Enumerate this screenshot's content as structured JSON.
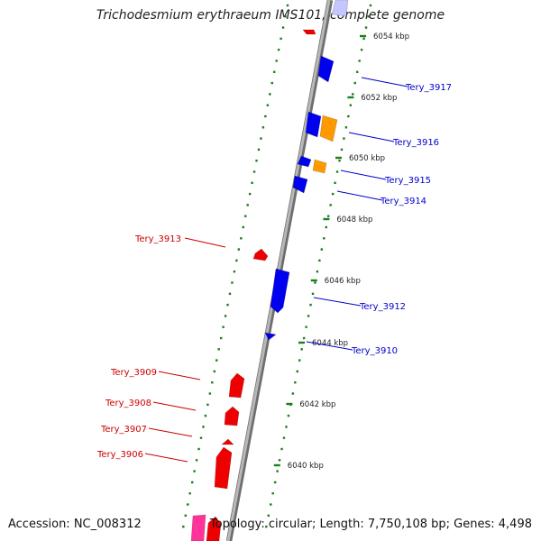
{
  "title": "Trichodesmium erythraeum IMS101, complete genome",
  "footer": {
    "accession": "Accession: NC_008312",
    "topology": "Topology: circular; Length: 7,750,108 bp; Genes: 4,498"
  },
  "colors": {
    "backbone": "#8c8c8c",
    "tick": "#1e7d1e",
    "forward_label": "#0000cc",
    "reverse_label": "#cc0000",
    "blue_gene": "#0000ee",
    "red_gene": "#ee0000",
    "orange_gene": "#ff9900",
    "pink_gene": "#ff3399"
  },
  "scale_labels": [
    "6054 kbp",
    "6052 kbp",
    "6050 kbp",
    "6048 kbp",
    "6046 kbp",
    "6044 kbp",
    "6042 kbp",
    "6040 kbp"
  ],
  "gene_labels": [
    {
      "text": "Tery_3917",
      "strand": "forward"
    },
    {
      "text": "Tery_3916",
      "strand": "forward"
    },
    {
      "text": "Tery_3915",
      "strand": "forward"
    },
    {
      "text": "Tery_3914",
      "strand": "forward"
    },
    {
      "text": "Tery_3913",
      "strand": "reverse"
    },
    {
      "text": "Tery_3912",
      "strand": "forward"
    },
    {
      "text": "Tery_3910",
      "strand": "forward"
    },
    {
      "text": "Tery_3909",
      "strand": "reverse"
    },
    {
      "text": "Tery_3908",
      "strand": "reverse"
    },
    {
      "text": "Tery_3907",
      "strand": "reverse"
    },
    {
      "text": "Tery_3906",
      "strand": "reverse"
    }
  ]
}
